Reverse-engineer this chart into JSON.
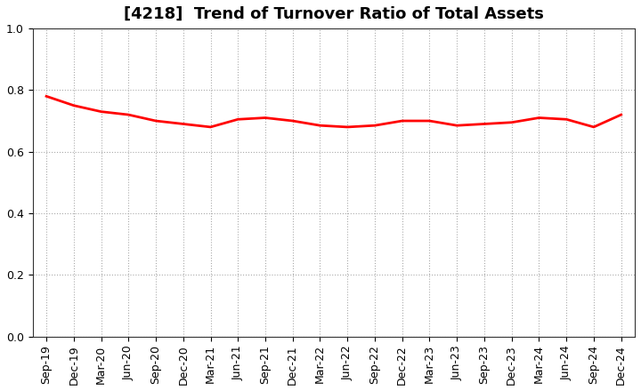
{
  "title": "[4218]  Trend of Turnover Ratio of Total Assets",
  "x_labels": [
    "Sep-19",
    "Dec-19",
    "Mar-20",
    "Jun-20",
    "Sep-20",
    "Dec-20",
    "Mar-21",
    "Jun-21",
    "Sep-21",
    "Dec-21",
    "Mar-22",
    "Jun-22",
    "Sep-22",
    "Dec-22",
    "Mar-23",
    "Jun-23",
    "Sep-23",
    "Dec-23",
    "Mar-24",
    "Jun-24",
    "Sep-24",
    "Dec-24"
  ],
  "y_values": [
    0.78,
    0.75,
    0.73,
    0.72,
    0.7,
    0.69,
    0.68,
    0.705,
    0.71,
    0.7,
    0.685,
    0.68,
    0.685,
    0.7,
    0.7,
    0.685,
    0.69,
    0.695,
    0.71,
    0.705,
    0.68,
    0.72
  ],
  "line_color": "#FF0000",
  "line_width": 2.0,
  "ylim": [
    0.0,
    1.0
  ],
  "yticks": [
    0.0,
    0.2,
    0.4,
    0.6,
    0.8,
    1.0
  ],
  "grid_color": "#aaaaaa",
  "background_color": "#ffffff",
  "title_fontsize": 13,
  "tick_fontsize": 9
}
